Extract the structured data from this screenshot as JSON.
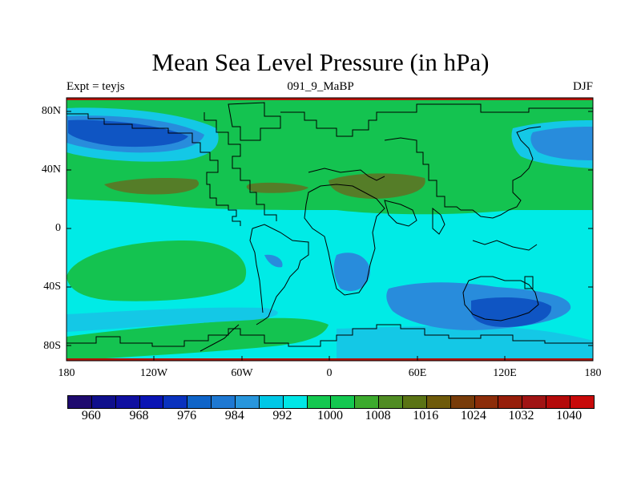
{
  "plot": {
    "title": "Mean Sea Level Pressure (in hPa)",
    "left_label": "Expt = teyjs",
    "center_label": "091_9_MaBP",
    "right_label": "DJF"
  },
  "axes": {
    "lat_ticks": [
      "80N",
      "40N",
      "0",
      "40S",
      "80S"
    ],
    "lon_ticks": [
      "180",
      "120W",
      "60W",
      "0",
      "60E",
      "120E",
      "180"
    ]
  },
  "colorbar": {
    "labels": [
      "960",
      "968",
      "976",
      "984",
      "992",
      "1000",
      "1008",
      "1016",
      "1024",
      "1032",
      "1040"
    ],
    "colors": [
      "#1e0a6e",
      "#0f0f8c",
      "#0f0fa0",
      "#0a14b4",
      "#0a32be",
      "#0f64c8",
      "#1e78d2",
      "#2896dc",
      "#00c8e6",
      "#00e6e6",
      "#14c850",
      "#14c850",
      "#3caa2d",
      "#508c23",
      "#5a7314",
      "#6e5a0a",
      "#783c0a",
      "#8c2d0a",
      "#961e0a",
      "#a01414",
      "#b40a0a",
      "#c80a0a"
    ]
  },
  "field_colors": {
    "ocean_mid": "#00ebe6",
    "ocean_light": "#14c8e6",
    "green": "#14c350",
    "olive": "#557d28",
    "blue_mid": "#288cdc",
    "blue_dark": "#0f55c3",
    "blue_deep": "#0a3cb4",
    "edge_red": "#b4140a"
  }
}
